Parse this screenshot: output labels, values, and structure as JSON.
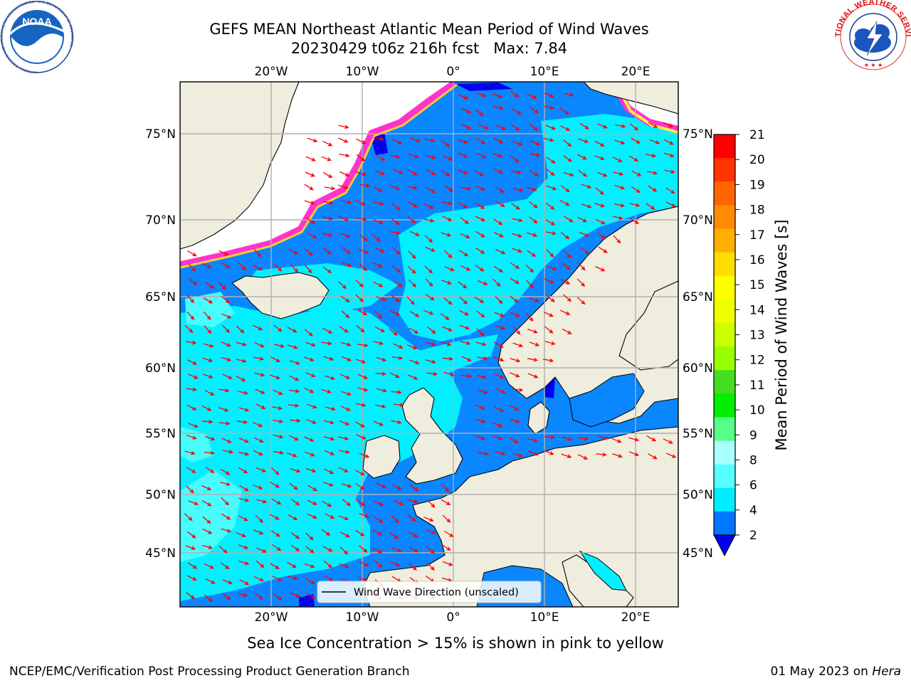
{
  "header": {
    "title_line1": "GEFS MEAN Northeast Atlantic Mean Period of Wind Waves",
    "title_line2": "20230429 t06z 216h fcst   Max: 7.84"
  },
  "logos": {
    "noaa_text": "NOAA",
    "noaa_ring_text": "NATIONAL OCEANIC AND ATMOSPHERIC ADMINISTRATION · U.S. DEPARTMENT OF COMMERCE",
    "nws_ring_text": "NATIONAL WEATHER SERVICE"
  },
  "map": {
    "top_lon_labels": [
      "20°W",
      "10°W",
      "0°",
      "10°E",
      "20°E"
    ],
    "bottom_lon_labels": [
      "20°W",
      "10°W",
      "0°",
      "10°E",
      "20°E"
    ],
    "left_lat_labels": [
      "75°N",
      "70°N",
      "65°N",
      "60°N",
      "55°N",
      "50°N",
      "45°N"
    ],
    "right_lat_labels": [
      "75°N",
      "70°N",
      "65°N",
      "60°N",
      "55°N",
      "50°N",
      "45°N"
    ],
    "legend_label": "Wind Wave Direction (unscaled)",
    "colors": {
      "land": "#efedde",
      "ice_pink": "#ff33cc",
      "ice_yellow": "#ffee44",
      "period_2_4": "#0a86ff",
      "period_4_6": "#00f0ff",
      "period_6_8": "#40fdfd",
      "period_below_2": "#0000ee",
      "arrow": "#ff0000",
      "grid": "#b0b0b0"
    }
  },
  "colorbar": {
    "label": "Mean Period of Wind Waves [s]",
    "ticks": [
      "21",
      "20",
      "19",
      "18",
      "17",
      "16",
      "15",
      "14",
      "13",
      "12",
      "11",
      "10",
      "9",
      "8",
      "6",
      "4",
      "2"
    ],
    "colors": [
      "#ff0000",
      "#ff3300",
      "#ff6600",
      "#ff8c00",
      "#ffb000",
      "#ffdd00",
      "#ffff00",
      "#eeff00",
      "#ccff00",
      "#99ff00",
      "#44dd22",
      "#00ee00",
      "#55ff88",
      "#aaffff",
      "#55ffff",
      "#00eeff",
      "#0077ff"
    ],
    "extend_color": "#0000ee"
  },
  "footer": {
    "ice_note": "Sea Ice Concentration > 15% is shown in pink to yellow",
    "credit": "NCEP/EMC/Verification Post Processing Product Generation Branch",
    "date": "01 May 2023 on ",
    "machine": "Hera"
  }
}
